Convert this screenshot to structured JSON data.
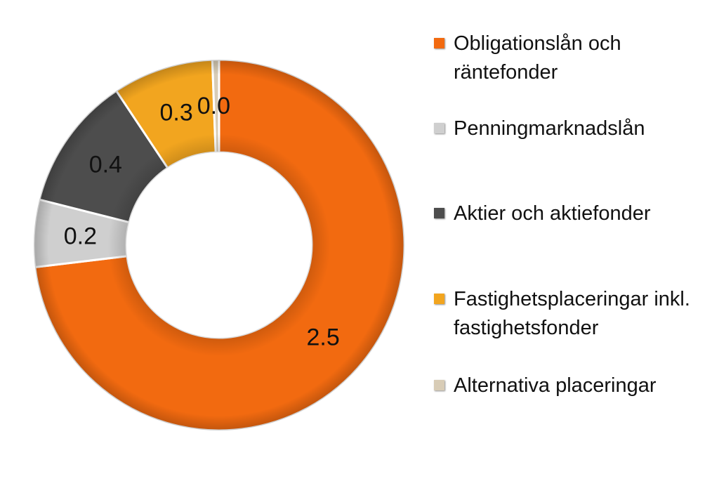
{
  "chart_data": {
    "type": "pie",
    "style": "donut",
    "categories": [
      "Obligationslån och räntefonder",
      "Penningmarknadslån",
      "Aktier och aktiefonder",
      "Fastighetsplaceringar inkl. fastighetsfonder",
      "Alternativa placeringar"
    ],
    "values": [
      2.5,
      0.2,
      0.4,
      0.3,
      0.02
    ],
    "data_labels": [
      "2.5",
      "0.2",
      "0.4",
      "0.3",
      "0.0"
    ],
    "colors": [
      "#f26a10",
      "#cfcfcf",
      "#4d4d4d",
      "#f2a51f",
      "#d8ccb6"
    ],
    "legend_position": "right",
    "title": ""
  },
  "legend": {
    "items": [
      {
        "label": "Obligationslån och räntefonder",
        "color": "#f26a10"
      },
      {
        "label": "Penningmarknadslån",
        "color": "#cfcfcf"
      },
      {
        "label": "Aktier och aktiefonder",
        "color": "#4d4d4d"
      },
      {
        "label": "Fastighetsplaceringar inkl. fastighetsfonder",
        "color": "#f2a51f"
      },
      {
        "label": "Alternativa placeringar",
        "color": "#d8ccb6"
      }
    ]
  }
}
